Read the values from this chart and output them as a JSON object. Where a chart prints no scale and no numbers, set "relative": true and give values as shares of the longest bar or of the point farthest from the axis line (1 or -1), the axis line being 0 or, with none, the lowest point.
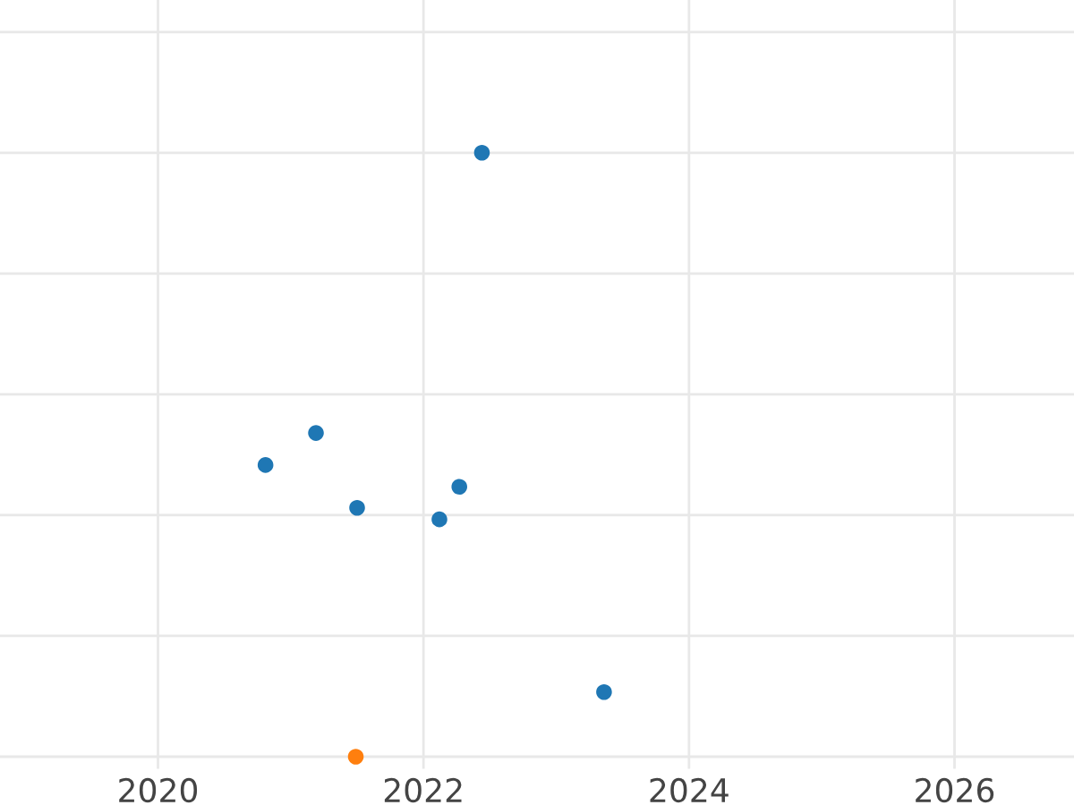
{
  "chart_data": {
    "type": "scatter",
    "relative": true,
    "series": [
      {
        "color": "#1f77b4",
        "x": [
          2022.44,
          2021.19,
          2020.81,
          2021.5,
          2022.27,
          2022.12,
          2023.36
        ],
        "values": [
          1,
          0.536,
          0.483,
          0.412,
          0.447,
          0.393,
          0.107
        ]
      },
      {
        "color": "#ff7f0e",
        "x": [
          2021.49
        ],
        "values": [
          0
        ]
      }
    ],
    "xlim": [
      2018.81,
      2026.9
    ],
    "xticks": [
      2020,
      2022,
      2024,
      2026
    ],
    "grid": true,
    "marker": "circle",
    "tick_labels": "x"
  }
}
